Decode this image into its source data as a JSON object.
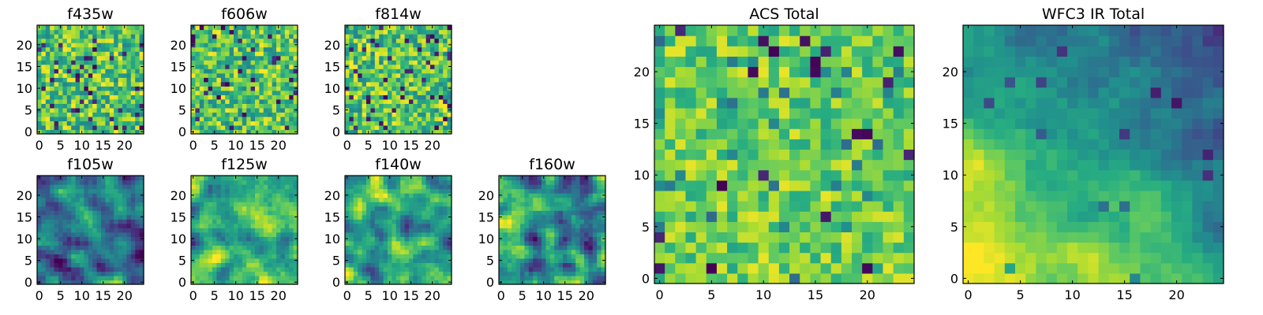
{
  "chart_data": {
    "type": "heatmap",
    "colormap": "viridis",
    "grid_size": 25,
    "panels": [
      {
        "id": "f435w",
        "title": "f435w",
        "xticks": [
          0,
          5,
          10,
          15,
          20
        ],
        "yticks": [
          0,
          5,
          10,
          15,
          20
        ],
        "xlim": [
          -0.5,
          24.5
        ],
        "ylim": [
          -0.5,
          24.5
        ],
        "pattern": "noise",
        "seed": 435,
        "dark_fraction": 0.06
      },
      {
        "id": "f606w",
        "title": "f606w",
        "xticks": [
          0,
          5,
          10,
          15,
          20
        ],
        "yticks": [
          0,
          5,
          10,
          15,
          20
        ],
        "xlim": [
          -0.5,
          24.5
        ],
        "ylim": [
          -0.5,
          24.5
        ],
        "pattern": "noise",
        "seed": 606,
        "dark_fraction": 0.06
      },
      {
        "id": "f814w",
        "title": "f814w",
        "xticks": [
          0,
          5,
          10,
          15,
          20
        ],
        "yticks": [
          0,
          5,
          10,
          15,
          20
        ],
        "xlim": [
          -0.5,
          24.5
        ],
        "ylim": [
          -0.5,
          24.5
        ],
        "pattern": "noise",
        "seed": 814,
        "dark_fraction": 0.05
      },
      {
        "id": "f105w",
        "title": "f105w",
        "xticks": [
          0,
          5,
          10,
          15,
          20
        ],
        "yticks": [
          0,
          5,
          10,
          15,
          20
        ],
        "xlim": [
          -0.5,
          24.5
        ],
        "ylim": [
          -0.5,
          24.5
        ],
        "pattern": "smooth",
        "seed": 105,
        "level": 0.45
      },
      {
        "id": "f125w",
        "title": "f125w",
        "xticks": [
          0,
          5,
          10,
          15,
          20
        ],
        "yticks": [
          0,
          5,
          10,
          15,
          20
        ],
        "xlim": [
          -0.5,
          24.5
        ],
        "ylim": [
          -0.5,
          24.5
        ],
        "pattern": "smooth",
        "seed": 125,
        "level": 0.62
      },
      {
        "id": "f140w",
        "title": "f140w",
        "xticks": [
          0,
          5,
          10,
          15,
          20
        ],
        "yticks": [
          0,
          5,
          10,
          15,
          20
        ],
        "xlim": [
          -0.5,
          24.5
        ],
        "ylim": [
          -0.5,
          24.5
        ],
        "pattern": "smooth",
        "seed": 140,
        "level": 0.6
      },
      {
        "id": "f160w",
        "title": "f160w",
        "xticks": [
          0,
          5,
          10,
          15,
          20
        ],
        "yticks": [
          0,
          5,
          10,
          15,
          20
        ],
        "xlim": [
          -0.5,
          24.5
        ],
        "ylim": [
          -0.5,
          24.5
        ],
        "pattern": "smooth",
        "seed": 160,
        "level": 0.52
      },
      {
        "id": "acs_total",
        "title": "ACS Total",
        "xticks": [
          0,
          5,
          10,
          15,
          20
        ],
        "yticks": [
          0,
          5,
          10,
          15,
          20
        ],
        "xlim": [
          -0.5,
          24.5
        ],
        "ylim": [
          -0.5,
          24.5
        ],
        "pattern": "blocky",
        "seed": 7,
        "level": 0.78
      },
      {
        "id": "wfc3_ir_total",
        "title": "WFC3 IR Total",
        "xticks": [
          0,
          5,
          10,
          15,
          20
        ],
        "yticks": [
          0,
          5,
          10,
          15,
          20
        ],
        "xlim": [
          -0.5,
          24.5
        ],
        "ylim": [
          -0.5,
          24.5
        ],
        "pattern": "gradient",
        "seed": 3,
        "level": 0.5
      }
    ]
  },
  "colors": {
    "viridis_dark": "#440154",
    "viridis_mid": "#21918c",
    "viridis_bright": "#fde725",
    "axis": "#000000",
    "background": "#ffffff"
  }
}
